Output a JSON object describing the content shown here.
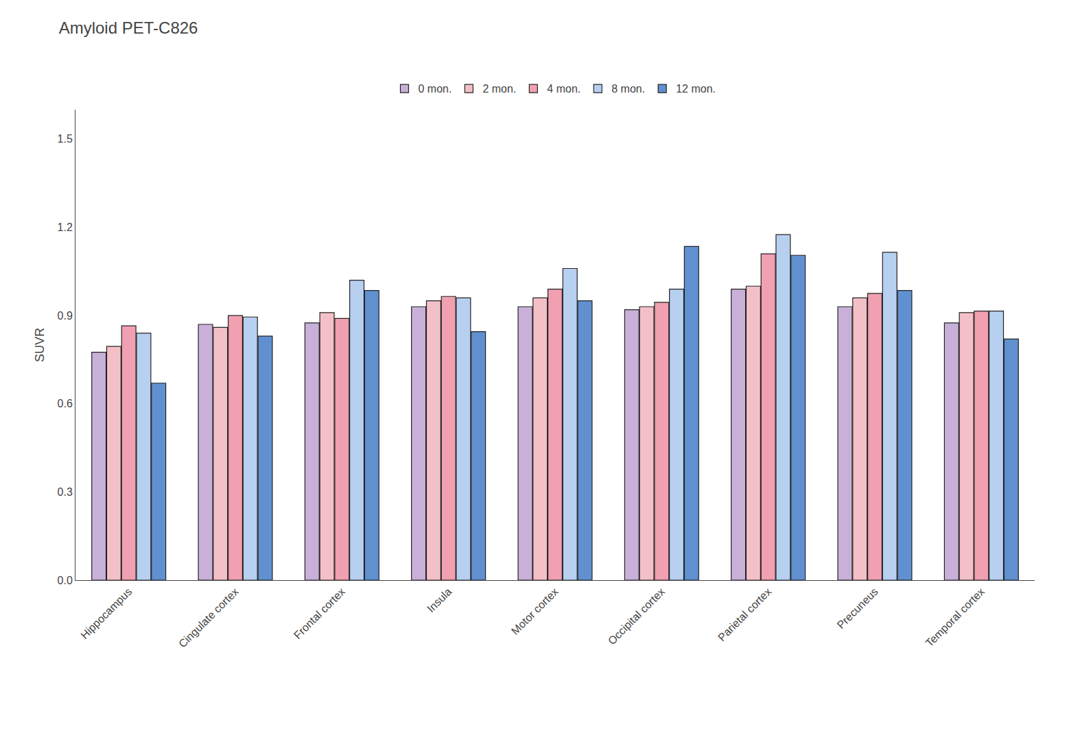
{
  "chart_data": {
    "type": "bar",
    "title": "Amyloid PET-C826",
    "ylabel": "SUVR",
    "categories": [
      "Hippocampus",
      "Cingulate cortex",
      "Frontal cortex",
      "Insula",
      "Motor cortex",
      "Occipital cortex",
      "Parietal cortex",
      "Precuneus",
      "Temporal cortex"
    ],
    "series": [
      {
        "name": "0 mon.",
        "color": "#c8b0d8",
        "values": [
          0.775,
          0.87,
          0.875,
          0.93,
          0.93,
          0.92,
          0.99,
          0.93,
          0.875
        ]
      },
      {
        "name": "2 mon.",
        "color": "#f4c0c8",
        "values": [
          0.795,
          0.86,
          0.91,
          0.95,
          0.96,
          0.93,
          1.0,
          0.96,
          0.91
        ]
      },
      {
        "name": "4 mon.",
        "color": "#f0a0b0",
        "values": [
          0.865,
          0.9,
          0.89,
          0.965,
          0.99,
          0.945,
          1.11,
          0.975,
          0.915
        ]
      },
      {
        "name": "8 mon.",
        "color": "#b8d0f0",
        "values": [
          0.84,
          0.895,
          1.02,
          0.96,
          1.06,
          0.99,
          1.175,
          1.115,
          0.915
        ]
      },
      {
        "name": "12 mon.",
        "color": "#6090d0",
        "values": [
          0.67,
          0.83,
          0.985,
          0.845,
          0.95,
          1.135,
          1.105,
          0.985,
          0.82
        ]
      }
    ],
    "ylim": [
      0.0,
      1.6
    ],
    "yticks": [
      {
        "value": 0.0,
        "label": "0.0"
      },
      0.3,
      0.6,
      0.9,
      1.2,
      1.5
    ],
    "grid": false,
    "legend": "top"
  }
}
